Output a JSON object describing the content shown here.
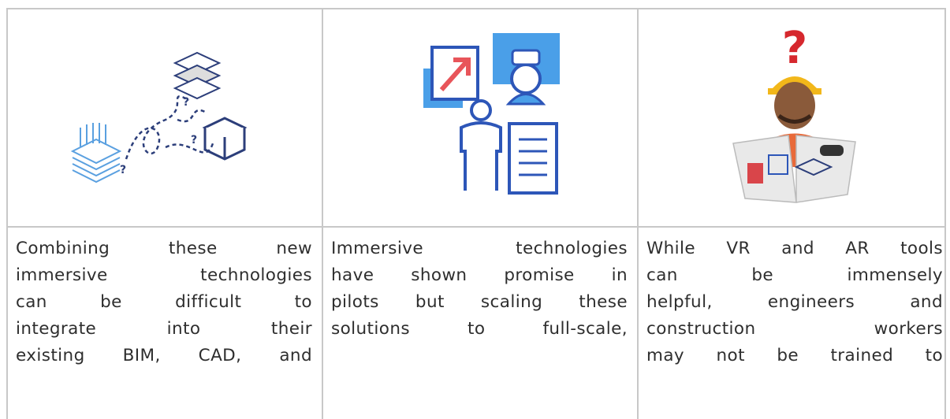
{
  "cells": [
    {
      "lines": [
        "Combining these new",
        "immersive technologies",
        "can be difficult to",
        "integrate into their",
        "existing BIM, CAD, and"
      ]
    },
    {
      "lines": [
        "Immersive technologies",
        "have shown promise in",
        "pilots but scaling these",
        "solutions to full-scale,"
      ]
    },
    {
      "lines": [
        "While VR and AR tools",
        "can be immensely",
        "helpful, engineers and",
        "construction workers",
        "may not be trained to"
      ]
    }
  ]
}
